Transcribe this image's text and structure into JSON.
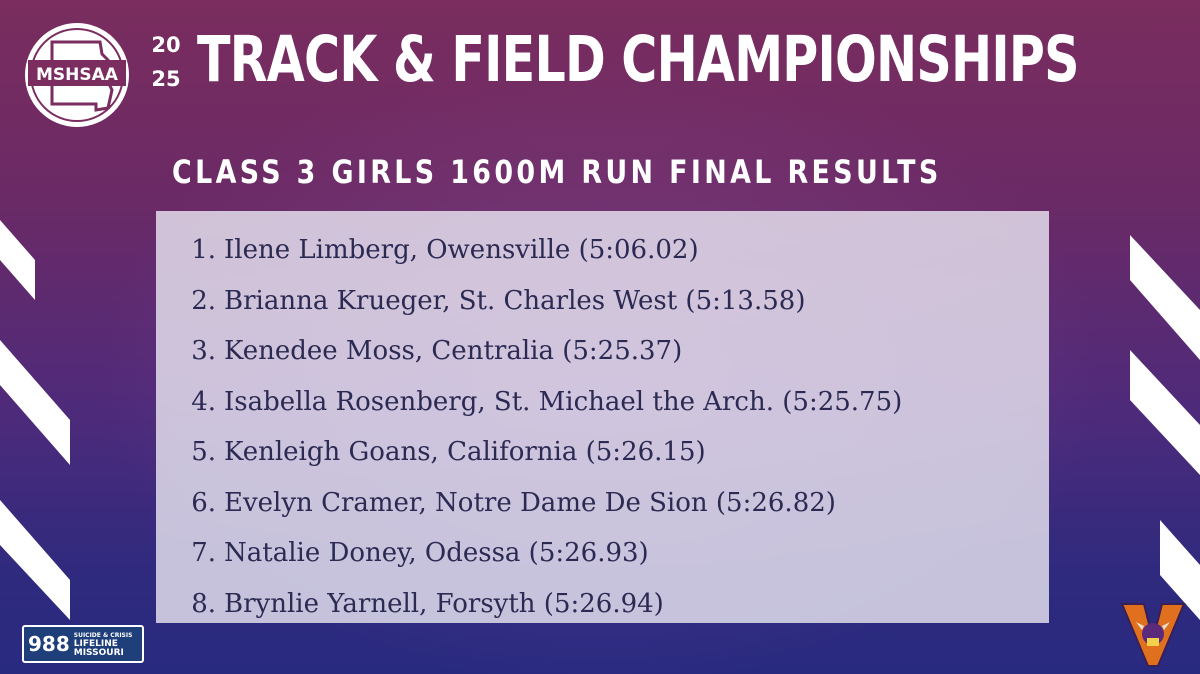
{
  "header": {
    "logo_text": "MSHSAA",
    "year_top": "20",
    "year_bottom": "25",
    "title": "TRACK & FIELD CHAMPIONSHIPS",
    "subtitle": "CLASS 3 GIRLS 1600M RUN FINAL RESULTS"
  },
  "results": [
    {
      "rank": "1.",
      "text": "Ilene Limberg, Owensville (5:06.02)"
    },
    {
      "rank": "2.",
      "text": "Brianna Krueger, St. Charles West (5:13.58)"
    },
    {
      "rank": "3.",
      "text": "Kenedee Moss, Centralia (5:25.37)"
    },
    {
      "rank": "4.",
      "text": "Isabella Rosenberg, St. Michael the Arch. (5:25.75)"
    },
    {
      "rank": "5.",
      "text": "Kenleigh Goans, California (5:26.15)"
    },
    {
      "rank": "6.",
      "text": "Evelyn Cramer, Notre Dame De Sion (5:26.82)"
    },
    {
      "rank": "7.",
      "text": "Natalie Doney, Odessa (5:26.93)"
    },
    {
      "rank": "8.",
      "text": "Brynlie Yarnell, Forsyth (5:26.94)"
    }
  ],
  "lifeline": {
    "number": "988",
    "line1": "SUICIDE & CRISIS",
    "line2": "LIFELINE",
    "line3": "MISSOURI"
  },
  "colors": {
    "background_top": "#7a2d5e",
    "background_bottom": "#282a80",
    "results_panel": "#e8e4f0",
    "results_text": "#2b2a52",
    "accent_orange": "#e0701e"
  },
  "icons": {
    "logo": "missouri-state-outline-icon",
    "school": "viking-v-icon"
  }
}
